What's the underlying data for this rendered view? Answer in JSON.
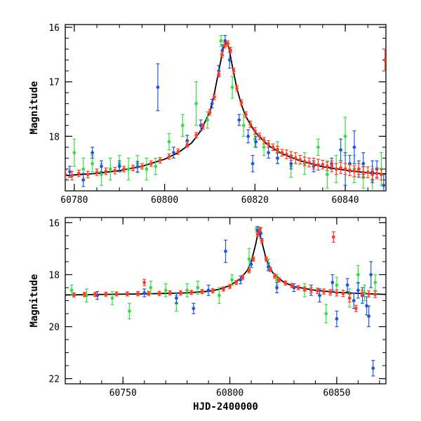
{
  "chart_data": [
    {
      "type": "scatter",
      "xlabel": "",
      "ylabel": "Magnitude",
      "xlim": [
        60778,
        60849
      ],
      "ylim": [
        19.0,
        15.95
      ],
      "y_inverted": true,
      "x_ticks": [
        60780,
        60800,
        60820,
        60840
      ],
      "y_ticks": [
        16,
        17,
        18
      ],
      "x_tick_labels": [
        "60780",
        "60800",
        "60820",
        "60840"
      ],
      "y_tick_labels": [
        "16",
        "17",
        "18"
      ],
      "model_curve": {
        "color": "#000000",
        "x": [
          60778,
          60785,
          60790,
          60795,
          60800,
          60803,
          60806,
          60808,
          60810,
          60811,
          60812,
          60813,
          60813.6,
          60814.2,
          60815,
          60816,
          60817,
          60818,
          60820,
          60823,
          60826,
          60830,
          60835,
          60840,
          60845,
          60849
        ],
        "y": [
          18.72,
          18.68,
          18.63,
          18.55,
          18.42,
          18.3,
          18.12,
          17.9,
          17.55,
          17.22,
          16.8,
          16.38,
          16.28,
          16.36,
          16.72,
          17.12,
          17.42,
          17.64,
          17.92,
          18.17,
          18.32,
          18.45,
          18.56,
          18.62,
          18.67,
          18.69
        ]
      },
      "series": [
        {
          "color": "#ff3a1f",
          "x": [
            60778,
            60779.5,
            60781,
            60783,
            60785,
            60787,
            60789,
            60791,
            60793,
            60795,
            60797,
            60799,
            60801,
            60803,
            60805,
            60807,
            60808.5,
            60810,
            60811,
            60812,
            60812.7,
            60813.3,
            60814,
            60814.6,
            60815.3,
            60816,
            60817,
            60818,
            60819,
            60820,
            60821,
            60822,
            60823,
            60824,
            60825,
            60826,
            60827,
            60828,
            60829,
            60830,
            60831,
            60832,
            60833,
            60834,
            60835,
            60836,
            60837,
            60838,
            60839,
            60840,
            60841,
            60842,
            60843,
            60844,
            60845,
            60846,
            60847,
            60848,
            60848.8
          ],
          "y": [
            18.7,
            18.72,
            18.68,
            18.7,
            18.66,
            18.64,
            18.63,
            18.6,
            18.58,
            18.55,
            18.5,
            18.44,
            18.37,
            18.28,
            18.15,
            17.98,
            17.82,
            17.56,
            17.28,
            16.86,
            16.5,
            16.33,
            16.3,
            16.42,
            16.8,
            17.12,
            17.38,
            17.6,
            17.78,
            17.9,
            18.0,
            18.08,
            18.14,
            18.2,
            18.24,
            18.3,
            18.33,
            18.36,
            18.4,
            18.43,
            18.46,
            18.48,
            18.5,
            18.52,
            18.52,
            18.55,
            18.55,
            18.6,
            18.58,
            18.6,
            18.62,
            18.64,
            18.6,
            18.66,
            18.66,
            18.7,
            18.68,
            18.7,
            16.6
          ],
          "err": [
            0.08,
            0.08,
            0.06,
            0.06,
            0.06,
            0.06,
            0.06,
            0.05,
            0.05,
            0.05,
            0.05,
            0.05,
            0.05,
            0.05,
            0.05,
            0.05,
            0.05,
            0.05,
            0.05,
            0.05,
            0.05,
            0.05,
            0.05,
            0.05,
            0.05,
            0.05,
            0.05,
            0.05,
            0.06,
            0.06,
            0.06,
            0.06,
            0.06,
            0.06,
            0.06,
            0.06,
            0.08,
            0.08,
            0.1,
            0.08,
            0.08,
            0.08,
            0.1,
            0.1,
            0.08,
            0.08,
            0.1,
            0.1,
            0.1,
            0.1,
            0.1,
            0.1,
            0.1,
            0.1,
            0.1,
            0.1,
            0.1,
            0.1,
            0.2
          ]
        },
        {
          "color": "#2255e0",
          "x": [
            60779,
            60782,
            60784,
            60786,
            60790,
            60794,
            60798.5,
            60802,
            60805,
            60808,
            60810.5,
            60812,
            60812.8,
            60813.4,
            60814.4,
            60816.5,
            60818.5,
            60819.5,
            60820.2,
            60823,
            60825,
            60828,
            60833,
            60837,
            60839,
            60840,
            60841,
            60842,
            60843,
            60844,
            60846,
            60847,
            60848.5
          ],
          "y": [
            18.65,
            18.8,
            18.3,
            18.55,
            18.55,
            18.56,
            17.1,
            18.3,
            18.08,
            17.8,
            17.4,
            16.8,
            16.42,
            16.25,
            16.6,
            17.7,
            18.0,
            18.5,
            18.1,
            18.3,
            18.4,
            18.5,
            18.55,
            18.5,
            18.25,
            18.6,
            18.5,
            18.2,
            18.6,
            18.5,
            18.65,
            18.6,
            18.9
          ],
          "err": [
            0.1,
            0.12,
            0.1,
            0.1,
            0.1,
            0.1,
            0.43,
            0.1,
            0.1,
            0.1,
            0.08,
            0.1,
            0.1,
            0.1,
            0.15,
            0.1,
            0.12,
            0.15,
            0.1,
            0.1,
            0.1,
            0.1,
            0.1,
            0.1,
            0.2,
            0.3,
            0.15,
            0.3,
            0.15,
            0.2,
            0.2,
            0.15,
            0.2
          ]
        },
        {
          "color": "#33e040",
          "x": [
            60780,
            60782,
            60784,
            60786,
            60788,
            60790,
            60792,
            60794,
            60796,
            60798,
            60801,
            60804,
            60807,
            60809.5,
            60812.5,
            60815,
            60817.5,
            60820,
            60822,
            60825,
            60828,
            60831,
            60834,
            60836,
            60838,
            60840,
            60842,
            60844,
            60846,
            60848
          ],
          "y": [
            18.3,
            18.6,
            18.5,
            18.7,
            18.6,
            18.5,
            18.6,
            18.5,
            18.6,
            18.55,
            18.1,
            17.8,
            17.4,
            17.7,
            16.25,
            17.1,
            17.8,
            18.05,
            18.2,
            18.3,
            18.55,
            18.5,
            18.2,
            18.7,
            18.6,
            18.0,
            18.6,
            18.75,
            18.8,
            18.6
          ],
          "err": [
            0.25,
            0.2,
            0.15,
            0.2,
            0.2,
            0.15,
            0.2,
            0.15,
            0.2,
            0.15,
            0.15,
            0.2,
            0.4,
            0.15,
            0.1,
            0.2,
            0.2,
            0.15,
            0.15,
            0.2,
            0.2,
            0.2,
            0.15,
            0.25,
            0.25,
            0.35,
            0.25,
            0.2,
            0.25,
            0.3
          ]
        }
      ]
    },
    {
      "type": "scatter",
      "xlabel": "HJD-2400000",
      "ylabel": "Magnitude",
      "xlim": [
        60723,
        60873
      ],
      "ylim": [
        22.2,
        15.8
      ],
      "y_inverted": true,
      "x_ticks": [
        60750,
        60800,
        60850
      ],
      "y_ticks": [
        16,
        18,
        20,
        22
      ],
      "x_tick_labels": [
        "60750",
        "60800",
        "60850"
      ],
      "y_tick_labels": [
        "16",
        "18",
        "20",
        "22"
      ],
      "model_curve": {
        "color": "#000000",
        "x": [
          60723,
          60740,
          60760,
          60780,
          60790,
          60795,
          60800,
          60805,
          60808,
          60810,
          60812,
          60813.5,
          60815,
          60817,
          60820,
          60825,
          60830,
          60840,
          60850,
          60860,
          60873
        ],
        "y": [
          18.78,
          18.76,
          18.74,
          18.7,
          18.64,
          18.56,
          18.42,
          18.15,
          17.85,
          17.5,
          16.85,
          16.28,
          16.75,
          17.4,
          17.92,
          18.28,
          18.46,
          18.6,
          18.68,
          18.72,
          18.76
        ]
      },
      "series": [
        {
          "color": "#ff3a1f",
          "x": [
            60727,
            60732,
            60737,
            60742,
            60747,
            60752,
            60757,
            60760,
            60762,
            60767,
            60772,
            60777,
            60782,
            60787,
            60792,
            60797,
            60800,
            60803,
            60806,
            60809,
            60811,
            60813,
            60814,
            60815,
            60817,
            60819,
            60821,
            60823,
            60826,
            60829,
            60832,
            60835,
            60838,
            60841,
            60844,
            60847,
            60848.5,
            60850,
            60853,
            60856,
            60859,
            60862,
            60865,
            60868
          ],
          "y": [
            18.78,
            18.76,
            18.76,
            18.75,
            18.74,
            18.74,
            18.73,
            18.3,
            18.72,
            18.72,
            18.7,
            18.7,
            18.68,
            18.65,
            18.62,
            18.55,
            18.45,
            18.3,
            18.1,
            17.85,
            17.4,
            16.45,
            16.28,
            16.7,
            17.4,
            17.8,
            18.05,
            18.2,
            18.32,
            18.42,
            18.5,
            18.55,
            18.6,
            18.62,
            18.65,
            18.68,
            16.55,
            18.7,
            18.72,
            18.9,
            19.3,
            18.72,
            18.74,
            18.76
          ],
          "err": [
            0.08,
            0.08,
            0.08,
            0.08,
            0.08,
            0.08,
            0.08,
            0.12,
            0.08,
            0.08,
            0.08,
            0.08,
            0.08,
            0.08,
            0.08,
            0.08,
            0.08,
            0.08,
            0.08,
            0.08,
            0.08,
            0.08,
            0.1,
            0.08,
            0.08,
            0.08,
            0.08,
            0.08,
            0.08,
            0.08,
            0.08,
            0.08,
            0.1,
            0.1,
            0.1,
            0.1,
            0.2,
            0.12,
            0.12,
            0.15,
            0.12,
            0.12,
            0.12,
            0.12
          ]
        },
        {
          "color": "#2255e0",
          "x": [
            60738,
            60760,
            60775,
            60783,
            60790,
            60798,
            60805,
            60810,
            60813,
            60814.5,
            60818,
            60822,
            60830,
            60838,
            60842,
            60848,
            60850,
            60855,
            60858,
            60860,
            60862,
            60864,
            60865,
            60866,
            60867
          ],
          "y": [
            18.8,
            18.7,
            18.9,
            19.3,
            18.6,
            17.1,
            18.2,
            17.6,
            16.3,
            16.4,
            17.7,
            18.5,
            18.5,
            18.6,
            18.8,
            18.3,
            19.7,
            18.4,
            19.0,
            18.6,
            18.8,
            19.2,
            19.6,
            18.0,
            21.6
          ],
          "err": [
            0.15,
            0.15,
            0.2,
            0.2,
            0.2,
            0.43,
            0.15,
            0.12,
            0.15,
            0.2,
            0.15,
            0.2,
            0.15,
            0.2,
            0.25,
            0.3,
            0.3,
            0.25,
            0.3,
            0.3,
            0.3,
            0.35,
            0.4,
            0.5,
            0.3
          ]
        },
        {
          "color": "#33e040",
          "x": [
            60726,
            60733,
            60745,
            60753,
            60763,
            60770,
            60775,
            60780,
            60785,
            60795,
            60801,
            60809,
            60812.5,
            60818,
            60822,
            60835,
            60845,
            60850,
            60856,
            60860,
            60863,
            60868
          ],
          "y": [
            18.6,
            18.8,
            18.9,
            19.4,
            18.5,
            18.6,
            19.1,
            18.6,
            18.5,
            18.8,
            18.2,
            17.4,
            16.25,
            17.6,
            18.2,
            18.6,
            19.5,
            18.4,
            18.9,
            18.0,
            18.7,
            18.3
          ],
          "err": [
            0.2,
            0.25,
            0.25,
            0.3,
            0.25,
            0.25,
            0.3,
            0.25,
            0.25,
            0.3,
            0.2,
            0.4,
            0.1,
            0.2,
            0.2,
            0.25,
            0.35,
            0.3,
            0.35,
            0.35,
            0.3,
            0.3
          ]
        }
      ]
    }
  ]
}
